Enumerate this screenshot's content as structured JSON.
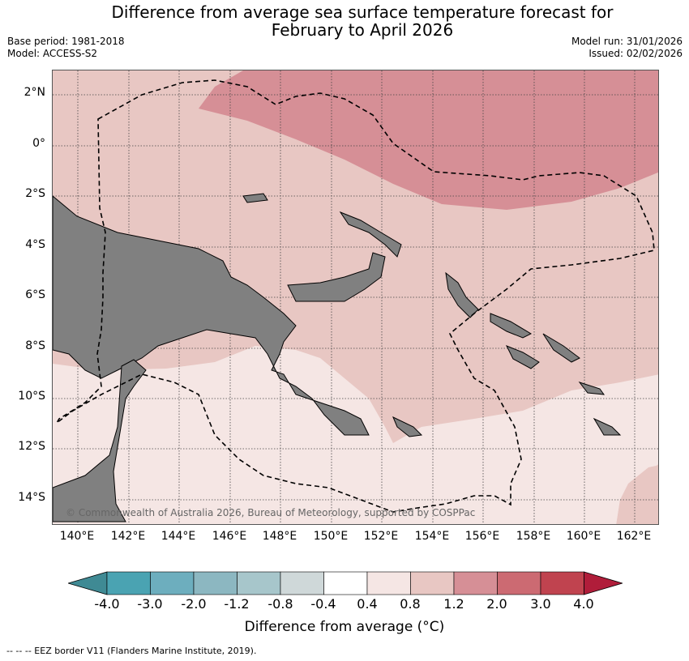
{
  "header": {
    "title_line1": "Difference from average sea surface temperature forecast for",
    "title_line2": "February to April 2026",
    "base_period": "Base period: 1981-2018",
    "model": "Model: ACCESS-S2",
    "model_run": "Model run: 31/01/2026",
    "issued": "Issued: 02/02/2026"
  },
  "map": {
    "lat_labels": [
      "2°N",
      "0°",
      "2°S",
      "4°S",
      "6°S",
      "8°S",
      "10°S",
      "12°S",
      "14°S"
    ],
    "lon_labels": [
      "140°E",
      "142°E",
      "144°E",
      "146°E",
      "148°E",
      "150°E",
      "152°E",
      "154°E",
      "156°E",
      "158°E",
      "160°E",
      "162°E"
    ],
    "copyright": "© Commonwealth of Australia 2026, Bureau of Meteorology, supported by COSPPac",
    "land_color": "#808080"
  },
  "colorbar": {
    "title": "Difference from average (°C)",
    "tick_labels": [
      "-4.0",
      "-3.0",
      "-2.0",
      "-1.2",
      "-0.8",
      "-0.4",
      "0.4",
      "0.8",
      "1.2",
      "2.0",
      "3.0",
      "4.0"
    ],
    "colors": [
      "#3f8a94",
      "#4aa3b2",
      "#6daebe",
      "#8cb7c1",
      "#a7c6cb",
      "#cfd8d9",
      "#ffffff",
      "#f5e6e4",
      "#e8c7c3",
      "#d68f96",
      "#cc6a72",
      "#c0434f",
      "#b01d3a"
    ]
  },
  "footnote": "--  --  -- EEZ border V11 (Flanders Marine Institute, 2019)."
}
